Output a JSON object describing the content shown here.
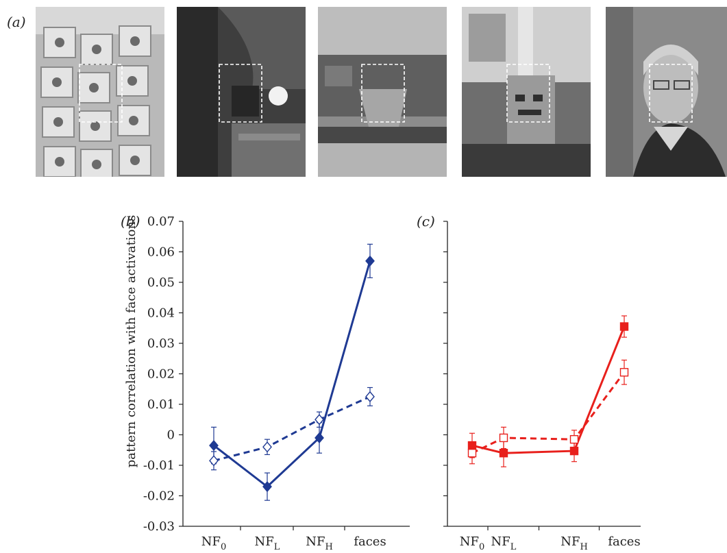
{
  "panel_a": {
    "label": "(a)",
    "photos": [
      {
        "icon": "building-facade-photo"
      },
      {
        "icon": "dark-machinery-photo"
      },
      {
        "icon": "train-car-photo"
      },
      {
        "icon": "electrical-panel-photo"
      },
      {
        "icon": "face-photo"
      }
    ]
  },
  "chart_data": [
    {
      "panel_label": "(b)",
      "type": "line",
      "categories": [
        "NF0",
        "NFL",
        "NFH",
        "faces"
      ],
      "ylabel": "pattern correlation with face activations",
      "ylim": [
        -0.03,
        0.07
      ],
      "yticks": [
        "0.07",
        "0.06",
        "0.05",
        "0.04",
        "0.03",
        "0.02",
        "0.01",
        "0",
        "-0.01",
        "-0.02",
        "-0.03"
      ],
      "ytick_values": [
        0.07,
        0.06,
        0.05,
        0.04,
        0.03,
        0.02,
        0.01,
        0,
        -0.01,
        -0.02,
        -0.03
      ],
      "color": "#1f3a93",
      "series": [
        {
          "style": "solid",
          "marker": "filled-diamond",
          "values": [
            -0.0035,
            -0.017,
            -0.001,
            0.057
          ],
          "errors": [
            0.006,
            0.0045,
            0.005,
            0.0055
          ]
        },
        {
          "style": "dashed",
          "marker": "open-diamond",
          "values": [
            -0.0085,
            -0.004,
            0.005,
            0.0125
          ],
          "errors": [
            0.003,
            0.0025,
            0.0025,
            0.003
          ]
        }
      ]
    },
    {
      "panel_label": "(c)",
      "type": "line",
      "categories": [
        "NF0",
        "NFL",
        "NFH",
        "faces"
      ],
      "ylim": [
        -0.03,
        0.07
      ],
      "color": "#e8201c",
      "series": [
        {
          "style": "solid",
          "marker": "filled-square",
          "values": [
            -0.0035,
            -0.006,
            -0.0053,
            0.0355
          ],
          "errors": [
            0.004,
            0.0045,
            0.0035,
            0.0035
          ]
        },
        {
          "style": "dashed",
          "marker": "open-square",
          "values": [
            -0.006,
            -0.001,
            -0.0015,
            0.0205
          ],
          "errors": [
            0.0035,
            0.0035,
            0.003,
            0.004
          ]
        }
      ]
    }
  ],
  "tick_parts": [
    {
      "base": "NF",
      "sub": "0"
    },
    {
      "base": "NF",
      "sub": "L"
    },
    {
      "base": "NF",
      "sub": "H"
    },
    {
      "base": "faces",
      "sub": ""
    }
  ]
}
